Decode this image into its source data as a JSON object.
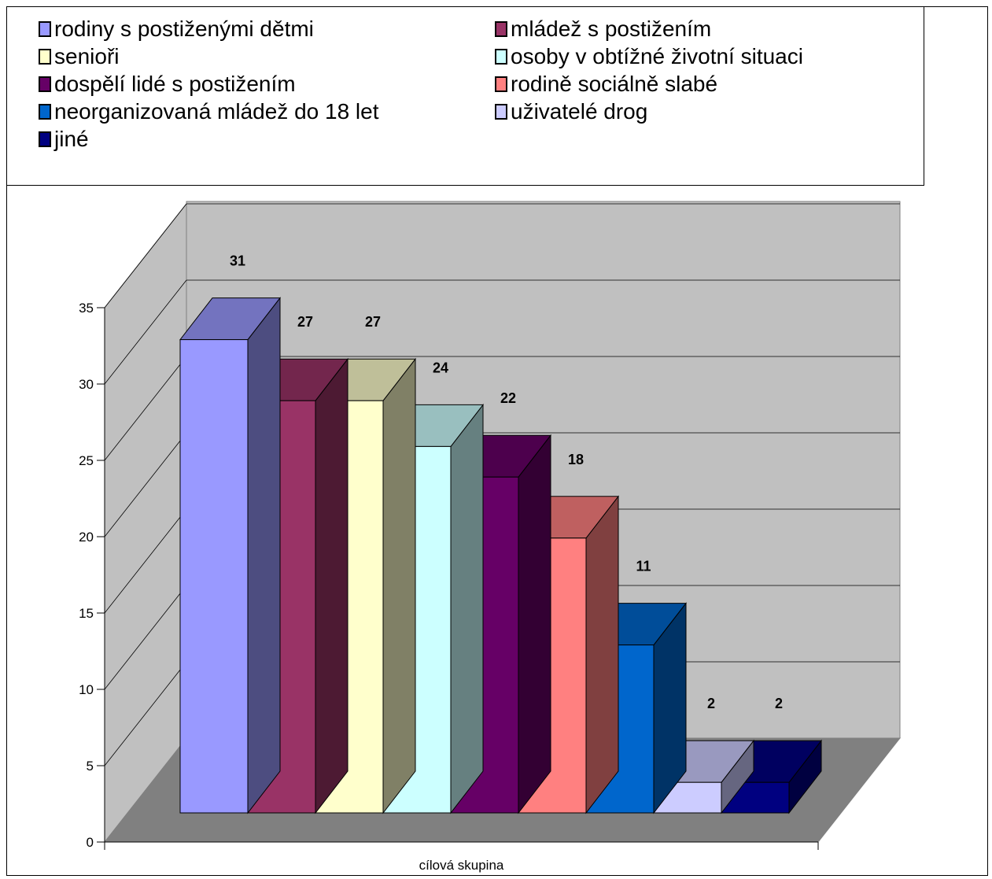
{
  "chart_data": {
    "type": "bar",
    "three_d": true,
    "xlabel": "cílová skupina",
    "ylabel": "",
    "ylim": [
      0,
      35
    ],
    "yticks": [
      0,
      5,
      10,
      15,
      20,
      25,
      30,
      35
    ],
    "grid": true,
    "legend_position": "top",
    "series": [
      {
        "name": "rodiny s postiženými dětmi",
        "values": [
          31
        ],
        "color": "#9999FF"
      },
      {
        "name": "mládež s postižením",
        "values": [
          27
        ],
        "color": "#993366"
      },
      {
        "name": "senioři",
        "values": [
          27
        ],
        "color": "#FFFFCC"
      },
      {
        "name": "osoby v obtížné životní situaci",
        "values": [
          24
        ],
        "color": "#CCFFFF"
      },
      {
        "name": "dospělí lidé s postižením",
        "values": [
          22
        ],
        "color": "#660066"
      },
      {
        "name": "rodině sociálně slabé",
        "values": [
          18
        ],
        "color": "#FF8080"
      },
      {
        "name": "neorganizovaná mládež do 18 let",
        "values": [
          11
        ],
        "color": "#0066CC"
      },
      {
        "name": "uživatelé drog",
        "values": [
          2
        ],
        "color": "#CCCCFF"
      },
      {
        "name": "jiné",
        "values": [
          2
        ],
        "color": "#000080"
      }
    ]
  },
  "colors": {
    "wall": "#C0C0C0",
    "floor": "#808080",
    "grid": "#000000"
  }
}
